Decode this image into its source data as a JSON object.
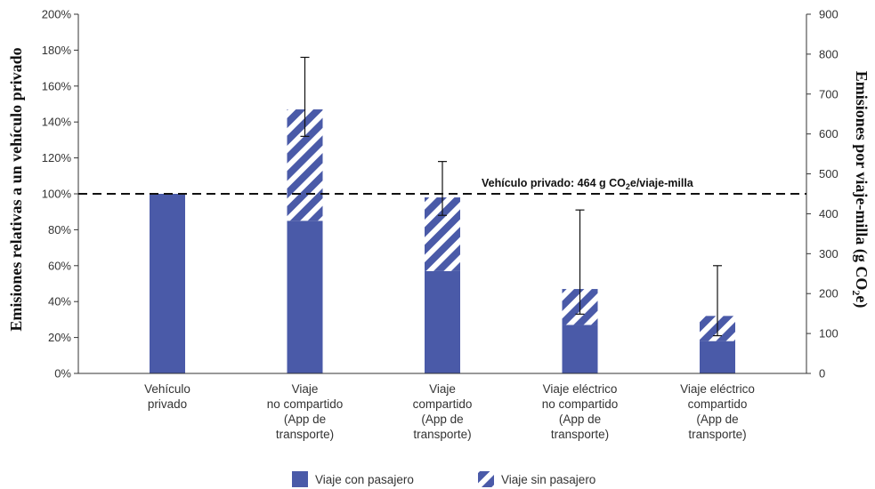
{
  "chart_data": {
    "type": "bar",
    "stacked": true,
    "categories": [
      [
        "Vehículo",
        "privado"
      ],
      [
        "Viaje",
        "no compartido",
        "(App de",
        "transporte)"
      ],
      [
        "Viaje",
        "compartido",
        "(App de",
        "transporte)"
      ],
      [
        "Viaje eléctrico",
        "no compartido",
        "(App de",
        "transporte)"
      ],
      [
        "Viaje eléctrico",
        "compartido",
        "(App de",
        "transporte)"
      ]
    ],
    "series": [
      {
        "name": "Viaje con pasajero",
        "values": [
          100,
          85,
          57,
          27,
          18
        ],
        "color": "#4a5aa8",
        "pattern": "solid"
      },
      {
        "name": "Viaje sin pasajero",
        "values": [
          0,
          62,
          41,
          20,
          14
        ],
        "color": "#4a5aa8",
        "pattern": "hatched"
      }
    ],
    "error_bars": [
      null,
      {
        "low": 132,
        "high": 176
      },
      {
        "low": 88,
        "high": 118
      },
      {
        "low": 33,
        "high": 91
      },
      {
        "low": 21,
        "high": 60
      }
    ],
    "ylabel": "Emisiones relativas a un vehículo privado",
    "y2label_main": "Emisiones por viaje-milla  (g CO",
    "y2label_sub": "2",
    "y2label_end": "e)",
    "ylim": [
      0,
      200
    ],
    "yticks": [
      0,
      20,
      40,
      60,
      80,
      100,
      120,
      140,
      160,
      180,
      200
    ],
    "ytick_suffix": "%",
    "y2lim": [
      0,
      900
    ],
    "y2ticks": [
      0,
      100,
      200,
      300,
      400,
      500,
      600,
      700,
      800,
      900
    ],
    "reference_line": {
      "value": 100,
      "label_pre": "Vehículo privado: 464 g CO",
      "label_sub": "2",
      "label_post": "e/viaje-milla",
      "style": "dashed"
    },
    "legend_position": "bottom-center",
    "grid": false
  }
}
